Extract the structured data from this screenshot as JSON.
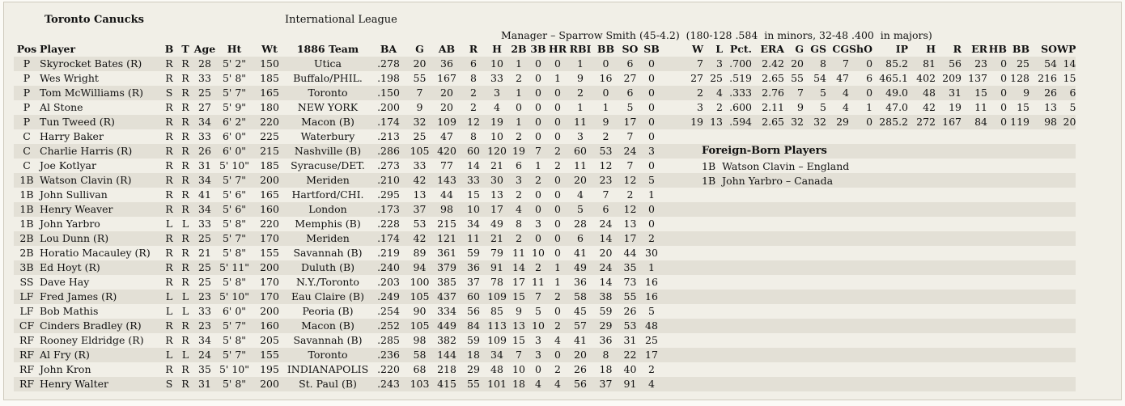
{
  "team": "Toronto Canucks",
  "league": "International League",
  "manager": "Manager – Sparrow Smith (45-4.2)  (180-128 .584  in minors, 32-48 .400  in majors)",
  "headers": [
    "Pos",
    "Player",
    "B",
    "T",
    "Age",
    "Ht",
    "Wt",
    "1886 Team",
    "BA",
    "G",
    "AB",
    "R",
    "H",
    "2B",
    "3B",
    "HR",
    "RBI",
    "BB",
    "SO",
    "SB",
    "",
    "W",
    "L",
    "Pct.",
    "ERA",
    "G",
    "GS",
    "CG",
    "ShO",
    "IP",
    "H",
    "R",
    "ER",
    "HB",
    "BB",
    "SO",
    "WP"
  ],
  "players": [
    [
      "P",
      "Skyrocket Bates (R)",
      "R",
      "R",
      "28",
      "5' 2\"",
      "150",
      "Utica",
      ".278",
      "20",
      "36",
      "6",
      "10",
      "1",
      "0",
      "0",
      "1",
      "0",
      "6",
      "0",
      "",
      "7",
      "3",
      ".700",
      "2.42",
      "20",
      "8",
      "7",
      "0",
      "85.2",
      "81",
      "56",
      "23",
      "0",
      "25",
      "54",
      "14"
    ],
    [
      "P",
      "Wes Wright",
      "R",
      "R",
      "33",
      "5' 8\"",
      "185",
      "Buffalo/PHIL.",
      ".198",
      "55",
      "167",
      "8",
      "33",
      "2",
      "0",
      "1",
      "9",
      "16",
      "27",
      "0",
      "",
      "27",
      "25",
      ".519",
      "2.65",
      "55",
      "54",
      "47",
      "6",
      "465.1",
      "402",
      "209",
      "137",
      "0",
      "128",
      "216",
      "15"
    ],
    [
      "P",
      "Tom McWilliams (R)",
      "S",
      "R",
      "25",
      "5' 7\"",
      "165",
      "Toronto",
      ".150",
      "7",
      "20",
      "2",
      "3",
      "1",
      "0",
      "0",
      "2",
      "0",
      "6",
      "0",
      "",
      "2",
      "4",
      ".333",
      "2.76",
      "7",
      "5",
      "4",
      "0",
      "49.0",
      "48",
      "31",
      "15",
      "0",
      "9",
      "26",
      "6"
    ],
    [
      "P",
      "Al Stone",
      "R",
      "R",
      "27",
      "5' 9\"",
      "180",
      "NEW YORK",
      ".200",
      "9",
      "20",
      "2",
      "4",
      "0",
      "0",
      "0",
      "1",
      "1",
      "5",
      "0",
      "",
      "3",
      "2",
      ".600",
      "2.11",
      "9",
      "5",
      "4",
      "1",
      "47.0",
      "42",
      "19",
      "11",
      "0",
      "15",
      "13",
      "5"
    ],
    [
      "P",
      "Tun Tweed (R)",
      "R",
      "R",
      "34",
      "6' 2\"",
      "220",
      "Macon (B)",
      ".174",
      "32",
      "109",
      "12",
      "19",
      "1",
      "0",
      "0",
      "11",
      "9",
      "17",
      "0",
      "",
      "19",
      "13",
      ".594",
      "2.65",
      "32",
      "32",
      "29",
      "0",
      "285.2",
      "272",
      "167",
      "84",
      "0",
      "119",
      "98",
      "20"
    ],
    [
      "C",
      "Harry Baker",
      "R",
      "R",
      "33",
      "6' 0\"",
      "225",
      "Waterbury",
      ".213",
      "25",
      "47",
      "8",
      "10",
      "2",
      "0",
      "0",
      "3",
      "2",
      "7",
      "0",
      "",
      "",
      "",
      "",
      "",
      "",
      "",
      "",
      "",
      "",
      "",
      "",
      "",
      "",
      "",
      "",
      ""
    ],
    [
      "C",
      "Charlie Harris (R)",
      "R",
      "R",
      "26",
      "6' 0\"",
      "215",
      "Nashville (B)",
      ".286",
      "105",
      "420",
      "60",
      "120",
      "19",
      "7",
      "2",
      "60",
      "53",
      "24",
      "3",
      "",
      "",
      "",
      "",
      "",
      "",
      "",
      "",
      "",
      "",
      "",
      "",
      "",
      "",
      "",
      "",
      ""
    ],
    [
      "C",
      "Joe Kotlyar",
      "R",
      "R",
      "31",
      "5' 10\"",
      "185",
      "Syracuse/DET.",
      ".273",
      "33",
      "77",
      "14",
      "21",
      "6",
      "1",
      "2",
      "11",
      "12",
      "7",
      "0",
      "",
      "",
      "",
      "",
      "",
      "",
      "",
      "",
      "",
      "",
      "",
      "",
      "",
      "",
      "",
      "",
      ""
    ],
    [
      "1B",
      "Watson Clavin (R)",
      "R",
      "R",
      "34",
      "5' 7\"",
      "200",
      "Meriden",
      ".210",
      "42",
      "143",
      "33",
      "30",
      "3",
      "2",
      "0",
      "20",
      "23",
      "12",
      "5",
      "",
      "",
      "",
      "",
      "",
      "",
      "",
      "",
      "",
      "",
      "",
      "",
      "",
      "",
      "",
      "",
      ""
    ],
    [
      "1B",
      "John Sullivan",
      "R",
      "R",
      "41",
      "5' 6\"",
      "165",
      "Hartford/CHI.",
      ".295",
      "13",
      "44",
      "15",
      "13",
      "2",
      "0",
      "0",
      "4",
      "7",
      "2",
      "1",
      "",
      "",
      "",
      "",
      "",
      "",
      "",
      "",
      "",
      "",
      "",
      "",
      "",
      "",
      "",
      "",
      ""
    ],
    [
      "1B",
      "Henry Weaver",
      "R",
      "R",
      "34",
      "5' 6\"",
      "160",
      "London",
      ".173",
      "37",
      "98",
      "10",
      "17",
      "4",
      "0",
      "0",
      "5",
      "6",
      "12",
      "0",
      "",
      "",
      "",
      "",
      "",
      "",
      "",
      "",
      "",
      "",
      "",
      "",
      "",
      "",
      "",
      "",
      ""
    ],
    [
      "1B",
      "John Yarbro",
      "L",
      "L",
      "33",
      "5' 8\"",
      "220",
      "Memphis (B)",
      ".228",
      "53",
      "215",
      "34",
      "49",
      "8",
      "3",
      "0",
      "28",
      "24",
      "13",
      "0",
      "",
      "",
      "",
      "",
      "",
      "",
      "",
      "",
      "",
      "",
      "",
      "",
      "",
      "",
      "",
      "",
      ""
    ],
    [
      "2B",
      "Lou Dunn (R)",
      "R",
      "R",
      "25",
      "5' 7\"",
      "170",
      "Meriden",
      ".174",
      "42",
      "121",
      "11",
      "21",
      "2",
      "0",
      "0",
      "6",
      "14",
      "17",
      "2",
      "",
      "",
      "",
      "",
      "",
      "",
      "",
      "",
      "",
      "",
      "",
      "",
      "",
      "",
      "",
      "",
      ""
    ],
    [
      "2B",
      "Horatio Macauley (R)",
      "R",
      "R",
      "21",
      "5' 8\"",
      "155",
      "Savannah (B)",
      ".219",
      "89",
      "361",
      "59",
      "79",
      "11",
      "10",
      "0",
      "41",
      "20",
      "44",
      "30",
      "",
      "",
      "",
      "",
      "",
      "",
      "",
      "",
      "",
      "",
      "",
      "",
      "",
      "",
      "",
      "",
      ""
    ],
    [
      "3B",
      "Ed Hoyt (R)",
      "R",
      "R",
      "25",
      "5' 11\"",
      "200",
      "Duluth (B)",
      ".240",
      "94",
      "379",
      "36",
      "91",
      "14",
      "2",
      "1",
      "49",
      "24",
      "35",
      "1",
      "",
      "",
      "",
      "",
      "",
      "",
      "",
      "",
      "",
      "",
      "",
      "",
      "",
      "",
      "",
      "",
      ""
    ],
    [
      "SS",
      "Dave Hay",
      "R",
      "R",
      "25",
      "5' 8\"",
      "170",
      "N.Y./Toronto",
      ".203",
      "100",
      "385",
      "37",
      "78",
      "17",
      "11",
      "1",
      "36",
      "14",
      "73",
      "16",
      "",
      "",
      "",
      "",
      "",
      "",
      "",
      "",
      "",
      "",
      "",
      "",
      "",
      "",
      "",
      "",
      ""
    ],
    [
      "LF",
      "Fred James (R)",
      "L",
      "L",
      "23",
      "5' 10\"",
      "170",
      "Eau Claire (B)",
      ".249",
      "105",
      "437",
      "60",
      "109",
      "15",
      "7",
      "2",
      "58",
      "38",
      "55",
      "16",
      "",
      "",
      "",
      "",
      "",
      "",
      "",
      "",
      "",
      "",
      "",
      "",
      "",
      "",
      "",
      "",
      ""
    ],
    [
      "LF",
      "Bob Mathis",
      "L",
      "L",
      "33",
      "6' 0\"",
      "200",
      "Peoria (B)",
      ".254",
      "90",
      "334",
      "56",
      "85",
      "9",
      "5",
      "0",
      "45",
      "59",
      "26",
      "5",
      "",
      "",
      "",
      "",
      "",
      "",
      "",
      "",
      "",
      "",
      "",
      "",
      "",
      "",
      "",
      "",
      ""
    ],
    [
      "CF",
      "Cinders Bradley (R)",
      "R",
      "R",
      "23",
      "5' 7\"",
      "160",
      "Macon (B)",
      ".252",
      "105",
      "449",
      "84",
      "113",
      "13",
      "10",
      "2",
      "57",
      "29",
      "53",
      "48",
      "",
      "",
      "",
      "",
      "",
      "",
      "",
      "",
      "",
      "",
      "",
      "",
      "",
      "",
      "",
      "",
      ""
    ],
    [
      "RF",
      "Rooney Eldridge (R)",
      "R",
      "R",
      "34",
      "5' 8\"",
      "205",
      "Savannah (B)",
      ".285",
      "98",
      "382",
      "59",
      "109",
      "15",
      "3",
      "4",
      "41",
      "36",
      "31",
      "25",
      "",
      "",
      "",
      "",
      "",
      "",
      "",
      "",
      "",
      "",
      "",
      "",
      "",
      "",
      "",
      "",
      ""
    ],
    [
      "RF",
      "Al Fry (R)",
      "L",
      "L",
      "24",
      "5' 7\"",
      "155",
      "Toronto",
      ".236",
      "58",
      "144",
      "18",
      "34",
      "7",
      "3",
      "0",
      "20",
      "8",
      "22",
      "17",
      "",
      "",
      "",
      "",
      "",
      "",
      "",
      "",
      "",
      "",
      "",
      "",
      "",
      "",
      "",
      "",
      ""
    ],
    [
      "RF",
      "John Kron",
      "R",
      "R",
      "35",
      "5' 10\"",
      "195",
      "INDIANAPOLIS",
      ".220",
      "68",
      "218",
      "29",
      "48",
      "10",
      "0",
      "2",
      "26",
      "18",
      "40",
      "2",
      "",
      "",
      "",
      "",
      "",
      "",
      "",
      "",
      "",
      "",
      "",
      "",
      "",
      "",
      "",
      "",
      ""
    ],
    [
      "RF",
      "Henry Walter",
      "S",
      "R",
      "31",
      "5' 8\"",
      "200",
      "St. Paul (B)",
      ".243",
      "103",
      "415",
      "55",
      "101",
      "18",
      "4",
      "4",
      "56",
      "37",
      "91",
      "4",
      "",
      "",
      "",
      "",
      "",
      "",
      "",
      "",
      "",
      "",
      "",
      "",
      "",
      "",
      "",
      "",
      ""
    ]
  ],
  "foreign_born": {
    "title": "Foreign-Born Players",
    "items": [
      "1B  Watson Clavin – England",
      "1B  John Yarbro – Canada"
    ]
  }
}
